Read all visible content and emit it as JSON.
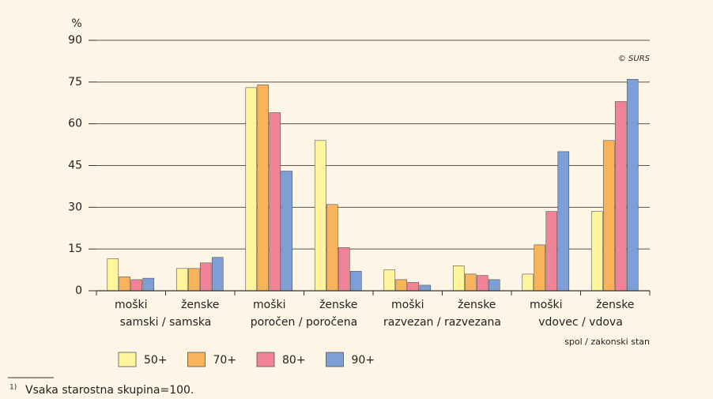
{
  "chart_data": {
    "type": "bar",
    "y_label": "%",
    "x_label": "spol / zakonski stan",
    "annotation": "© SURS",
    "categories": [
      "moški",
      "ženske",
      "moški",
      "ženske",
      "moški",
      "ženske",
      "moški",
      "ženske"
    ],
    "group_labels": [
      "samski / samska",
      "poročen / poročena",
      "razvezan / razvezana",
      "vdovec / vdova"
    ],
    "series": [
      {
        "name": "50+",
        "color": "#fff59d",
        "values": [
          11.5,
          8,
          73,
          54,
          7.5,
          9,
          6,
          28.5
        ]
      },
      {
        "name": "70+",
        "color": "#f9b35a",
        "values": [
          5,
          8,
          74,
          31,
          4,
          6,
          16.5,
          54
        ]
      },
      {
        "name": "80+",
        "color": "#f08496",
        "values": [
          4,
          10,
          64,
          15.5,
          3,
          5.5,
          28.5,
          68
        ]
      },
      {
        "name": "90+",
        "color": "#7d9fd6",
        "values": [
          4.5,
          12,
          43,
          7,
          2,
          4,
          50,
          76
        ]
      }
    ],
    "ylim": [
      0,
      90
    ],
    "yticks": [
      0,
      15,
      30,
      45,
      60,
      75,
      90
    ],
    "grid": true,
    "footnote": {
      "marker": "1)",
      "text": "Vsaka starostna skupina=100."
    }
  }
}
